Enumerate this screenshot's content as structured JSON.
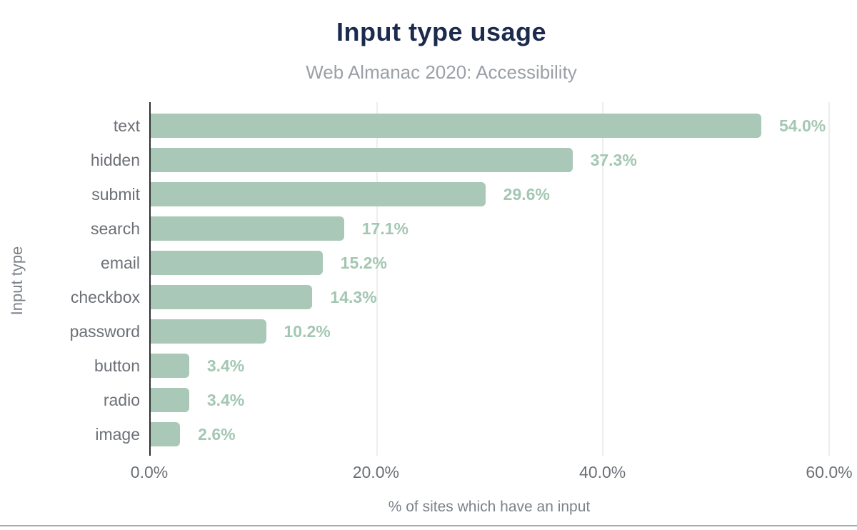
{
  "chart_data": {
    "type": "bar",
    "orientation": "horizontal",
    "title": "Input type usage",
    "subtitle": "Web Almanac 2020: Accessibility",
    "xlabel": "% of sites which have an input",
    "ylabel": "Input type",
    "categories": [
      "text",
      "hidden",
      "submit",
      "search",
      "email",
      "checkbox",
      "password",
      "button",
      "radio",
      "image"
    ],
    "values": [
      54.0,
      37.3,
      29.6,
      17.1,
      15.2,
      14.3,
      10.2,
      3.4,
      3.4,
      2.6
    ],
    "value_labels": [
      "54.0%",
      "37.3%",
      "29.6%",
      "17.1%",
      "15.2%",
      "14.3%",
      "10.2%",
      "3.4%",
      "3.4%",
      "2.6%"
    ],
    "xlim": [
      0,
      60
    ],
    "x_tick_values": [
      0,
      20,
      40,
      60
    ],
    "x_tick_labels": [
      "0.0%",
      "20.0%",
      "40.0%",
      "60.0%"
    ],
    "grid": "vertical-gridlines-at-20-40-60",
    "legend": "none",
    "colors": {
      "bar": "#a9c8b7",
      "value_label": "#a3c7b3",
      "title": "#1c2b4d",
      "subtitle": "#9aa0a6",
      "category_text": "#6c7076",
      "tick_text": "#6c7076",
      "axis_label_text": "#7d828a",
      "axis_line": "#2d2f33",
      "gridline": "#ededed",
      "background": "#ffffff"
    }
  }
}
